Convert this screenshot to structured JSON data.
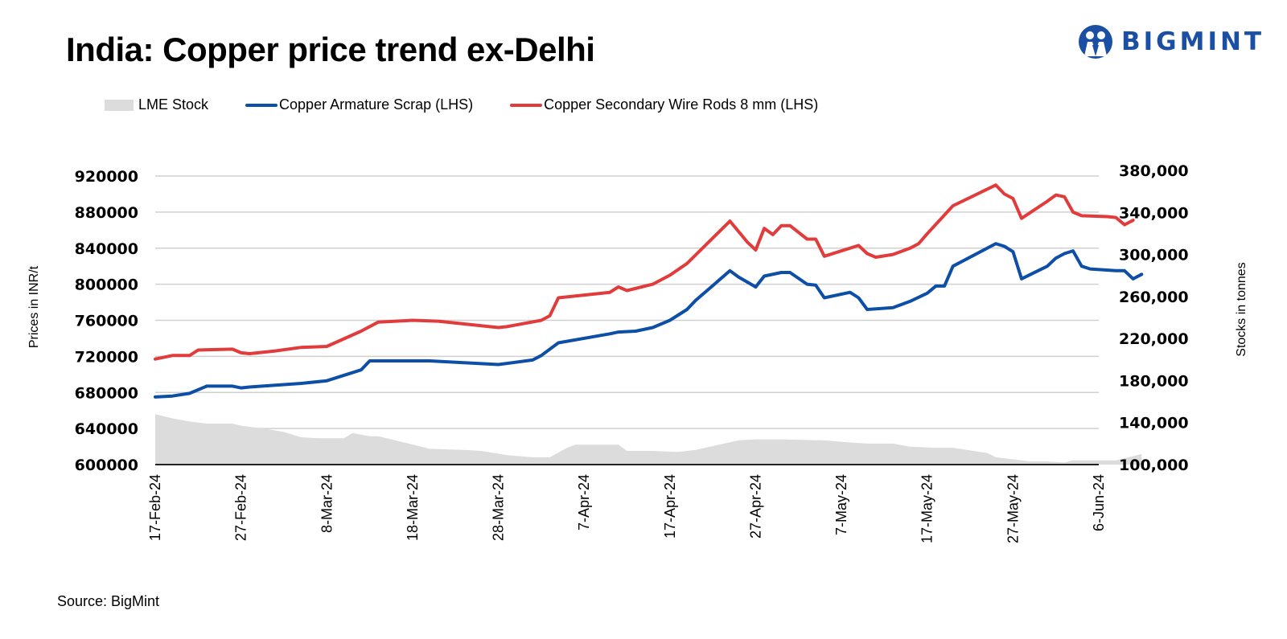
{
  "header": {
    "title": "India: Copper price trend ex-Delhi",
    "logo_text": "BIGMINT",
    "logo_color": "#1a4fa3"
  },
  "legend": [
    {
      "label": "LME Stock",
      "color": "#dcdcdc",
      "kind": "area"
    },
    {
      "label": "Copper Armature Scrap (LHS)",
      "color": "#0d4ea6",
      "kind": "line"
    },
    {
      "label": "Copper Secondary Wire Rods 8 mm (LHS)",
      "color": "#e23b3b",
      "kind": "line"
    }
  ],
  "footer": {
    "source": "Source: BigMint"
  },
  "chart_data": {
    "type": "line",
    "title": "India: Copper price trend ex-Delhi",
    "xlabel": "",
    "ylabel": "Prices in INR/t",
    "y2label": "Stocks in tonnes",
    "x_start": "17-Feb-24",
    "x_unit": "days since 17-Feb-24",
    "x_range": [
      0,
      110
    ],
    "x_tick_days": [
      0,
      10,
      20,
      30,
      40,
      50,
      60,
      70,
      80,
      90,
      100,
      110
    ],
    "x_tick_labels": [
      "17-Feb-24",
      "27-Feb-24",
      "8-Mar-24",
      "18-Mar-24",
      "28-Mar-24",
      "7-Apr-24",
      "17-Apr-24",
      "27-Apr-24",
      "7-May-24",
      "17-May-24",
      "27-May-24",
      "6-Jun-24"
    ],
    "ylim": [
      600000,
      920000
    ],
    "y_ticks": [
      600000,
      640000,
      680000,
      720000,
      760000,
      800000,
      840000,
      880000,
      920000
    ],
    "y_tick_labels": [
      "600000",
      "640000",
      "680000",
      "720000",
      "760000",
      "800000",
      "840000",
      "880000",
      "920000"
    ],
    "y2lim": [
      100000,
      380000
    ],
    "y2_ticks": [
      100000,
      140000,
      180000,
      220000,
      260000,
      300000,
      340000,
      380000
    ],
    "y2_tick_labels": [
      "100,000",
      "140,000",
      "180,000",
      "220,000",
      "260,000",
      "300,000",
      "340,000",
      "380,000"
    ],
    "grid": true,
    "legend_position": "top-left",
    "series": [
      {
        "name": "LME Stock",
        "type": "area",
        "axis": "right",
        "color": "#dcdcdc",
        "x": [
          0,
          2,
          4,
          6,
          9,
          10,
          13,
          15,
          17,
          19,
          22,
          23,
          25,
          26,
          29,
          32,
          36,
          38,
          41,
          44,
          46,
          48,
          49,
          54,
          55,
          58,
          61,
          63,
          68,
          70,
          73,
          78,
          81,
          83,
          86,
          88,
          91,
          93,
          97,
          98,
          100,
          102,
          104,
          106,
          107,
          112,
          114,
          115
        ],
        "values": [
          148000,
          144000,
          141000,
          139000,
          139000,
          137000,
          134000,
          131000,
          126000,
          125000,
          125000,
          130000,
          127000,
          127000,
          121000,
          115000,
          114000,
          113000,
          109000,
          107000,
          107000,
          116000,
          119000,
          119000,
          113000,
          113000,
          112000,
          114000,
          123000,
          124000,
          124000,
          123000,
          121000,
          120000,
          120000,
          117000,
          116000,
          116000,
          111000,
          107000,
          105000,
          103000,
          103000,
          102000,
          104000,
          104000,
          108000,
          110000
        ]
      },
      {
        "name": "Copper Armature Scrap (LHS)",
        "type": "line",
        "axis": "left",
        "color": "#0d4ea6",
        "x": [
          0,
          2,
          4,
          6,
          9,
          10,
          11,
          14,
          17,
          20,
          24,
          25,
          32,
          40,
          44,
          45,
          47,
          53,
          54,
          56,
          58,
          60,
          62,
          63,
          67,
          68,
          70,
          71,
          73,
          74,
          76,
          77,
          78,
          81,
          82,
          83,
          86,
          88,
          90,
          91,
          92,
          93,
          98,
          99,
          100,
          101,
          104,
          105,
          106,
          107,
          108,
          109,
          112,
          113,
          114,
          115
        ],
        "values": [
          675000,
          676000,
          679000,
          687000,
          687000,
          685000,
          686000,
          688000,
          690000,
          693000,
          705000,
          715000,
          715000,
          711000,
          716000,
          721000,
          735000,
          745000,
          747000,
          748000,
          752000,
          760000,
          772000,
          782000,
          815000,
          808000,
          797000,
          809000,
          813000,
          813000,
          800000,
          799000,
          785000,
          791000,
          785000,
          772000,
          774000,
          781000,
          790000,
          798000,
          798000,
          820000,
          845000,
          842000,
          836000,
          806000,
          820000,
          829000,
          834000,
          837000,
          820000,
          817000,
          815000,
          815000,
          806000,
          811000
        ]
      },
      {
        "name": "Copper Secondary Wire Rods 8 mm (LHS)",
        "type": "line",
        "axis": "left",
        "color": "#e23b3b",
        "x": [
          0,
          2,
          4,
          5,
          9,
          10,
          11,
          14,
          17,
          20,
          24,
          26,
          30,
          33,
          40,
          41,
          45,
          46,
          47,
          53,
          54,
          55,
          58,
          60,
          62,
          67,
          69,
          70,
          71,
          72,
          73,
          74,
          76,
          77,
          78,
          82,
          83,
          84,
          86,
          88,
          89,
          90,
          93,
          98,
          99,
          100,
          101,
          104,
          105,
          106,
          107,
          108,
          111,
          112,
          113,
          114
        ],
        "values": [
          717000,
          721000,
          721000,
          727000,
          728000,
          724000,
          723000,
          726000,
          730000,
          731000,
          748000,
          758000,
          760000,
          759000,
          752000,
          753000,
          760000,
          765000,
          785000,
          791000,
          797000,
          793000,
          800000,
          810000,
          823000,
          870000,
          847000,
          838000,
          862000,
          855000,
          865000,
          865000,
          850000,
          850000,
          831000,
          843000,
          834000,
          830000,
          833000,
          840000,
          845000,
          856000,
          887000,
          910000,
          900000,
          895000,
          873000,
          892000,
          899000,
          897000,
          880000,
          876000,
          875000,
          874000,
          866000,
          871000
        ]
      }
    ]
  }
}
